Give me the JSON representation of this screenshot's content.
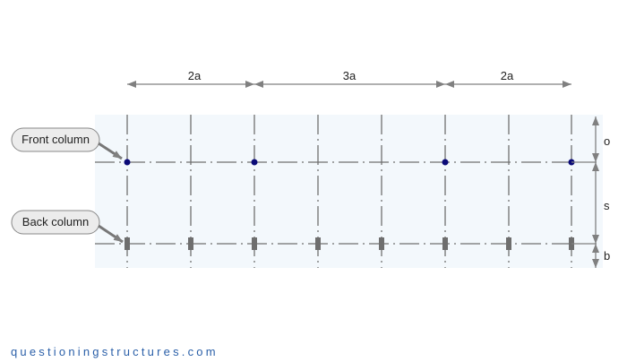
{
  "dimensions": {
    "top": [
      "2a",
      "3a",
      "2a"
    ],
    "right": [
      "o",
      "s",
      "b"
    ]
  },
  "labels": {
    "front_column": "Front column",
    "back_column": "Back column"
  },
  "footer": "questioningstructures.com",
  "colors": {
    "panel": "#f3f8fc",
    "line": "#707070",
    "front_column": "#0a0a78",
    "back_column": "#6e6e6e",
    "footer": "#2a5fa8"
  }
}
